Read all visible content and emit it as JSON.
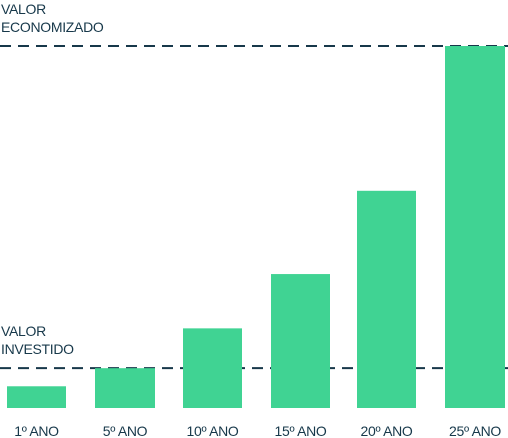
{
  "chart_data": {
    "type": "bar",
    "categories": [
      "1º ANO",
      "5º ANO",
      "10º ANO",
      "15º ANO",
      "20º ANO",
      "25º ANO"
    ],
    "values": [
      6,
      11,
      22,
      37,
      60,
      100
    ],
    "bar_color": "#40d393",
    "text_color": "#17384a",
    "reference_lines": [
      {
        "label_lines": [
          "VALOR",
          "ECONOMIZADO"
        ],
        "value": 100,
        "style": "dashed"
      },
      {
        "label_lines": [
          "VALOR",
          "INVESTIDO"
        ],
        "value": 11,
        "style": "dashed"
      }
    ],
    "title": "",
    "xlabel": "",
    "ylabel": "",
    "ylim": [
      0,
      100
    ],
    "grid": false,
    "legend": "none"
  }
}
